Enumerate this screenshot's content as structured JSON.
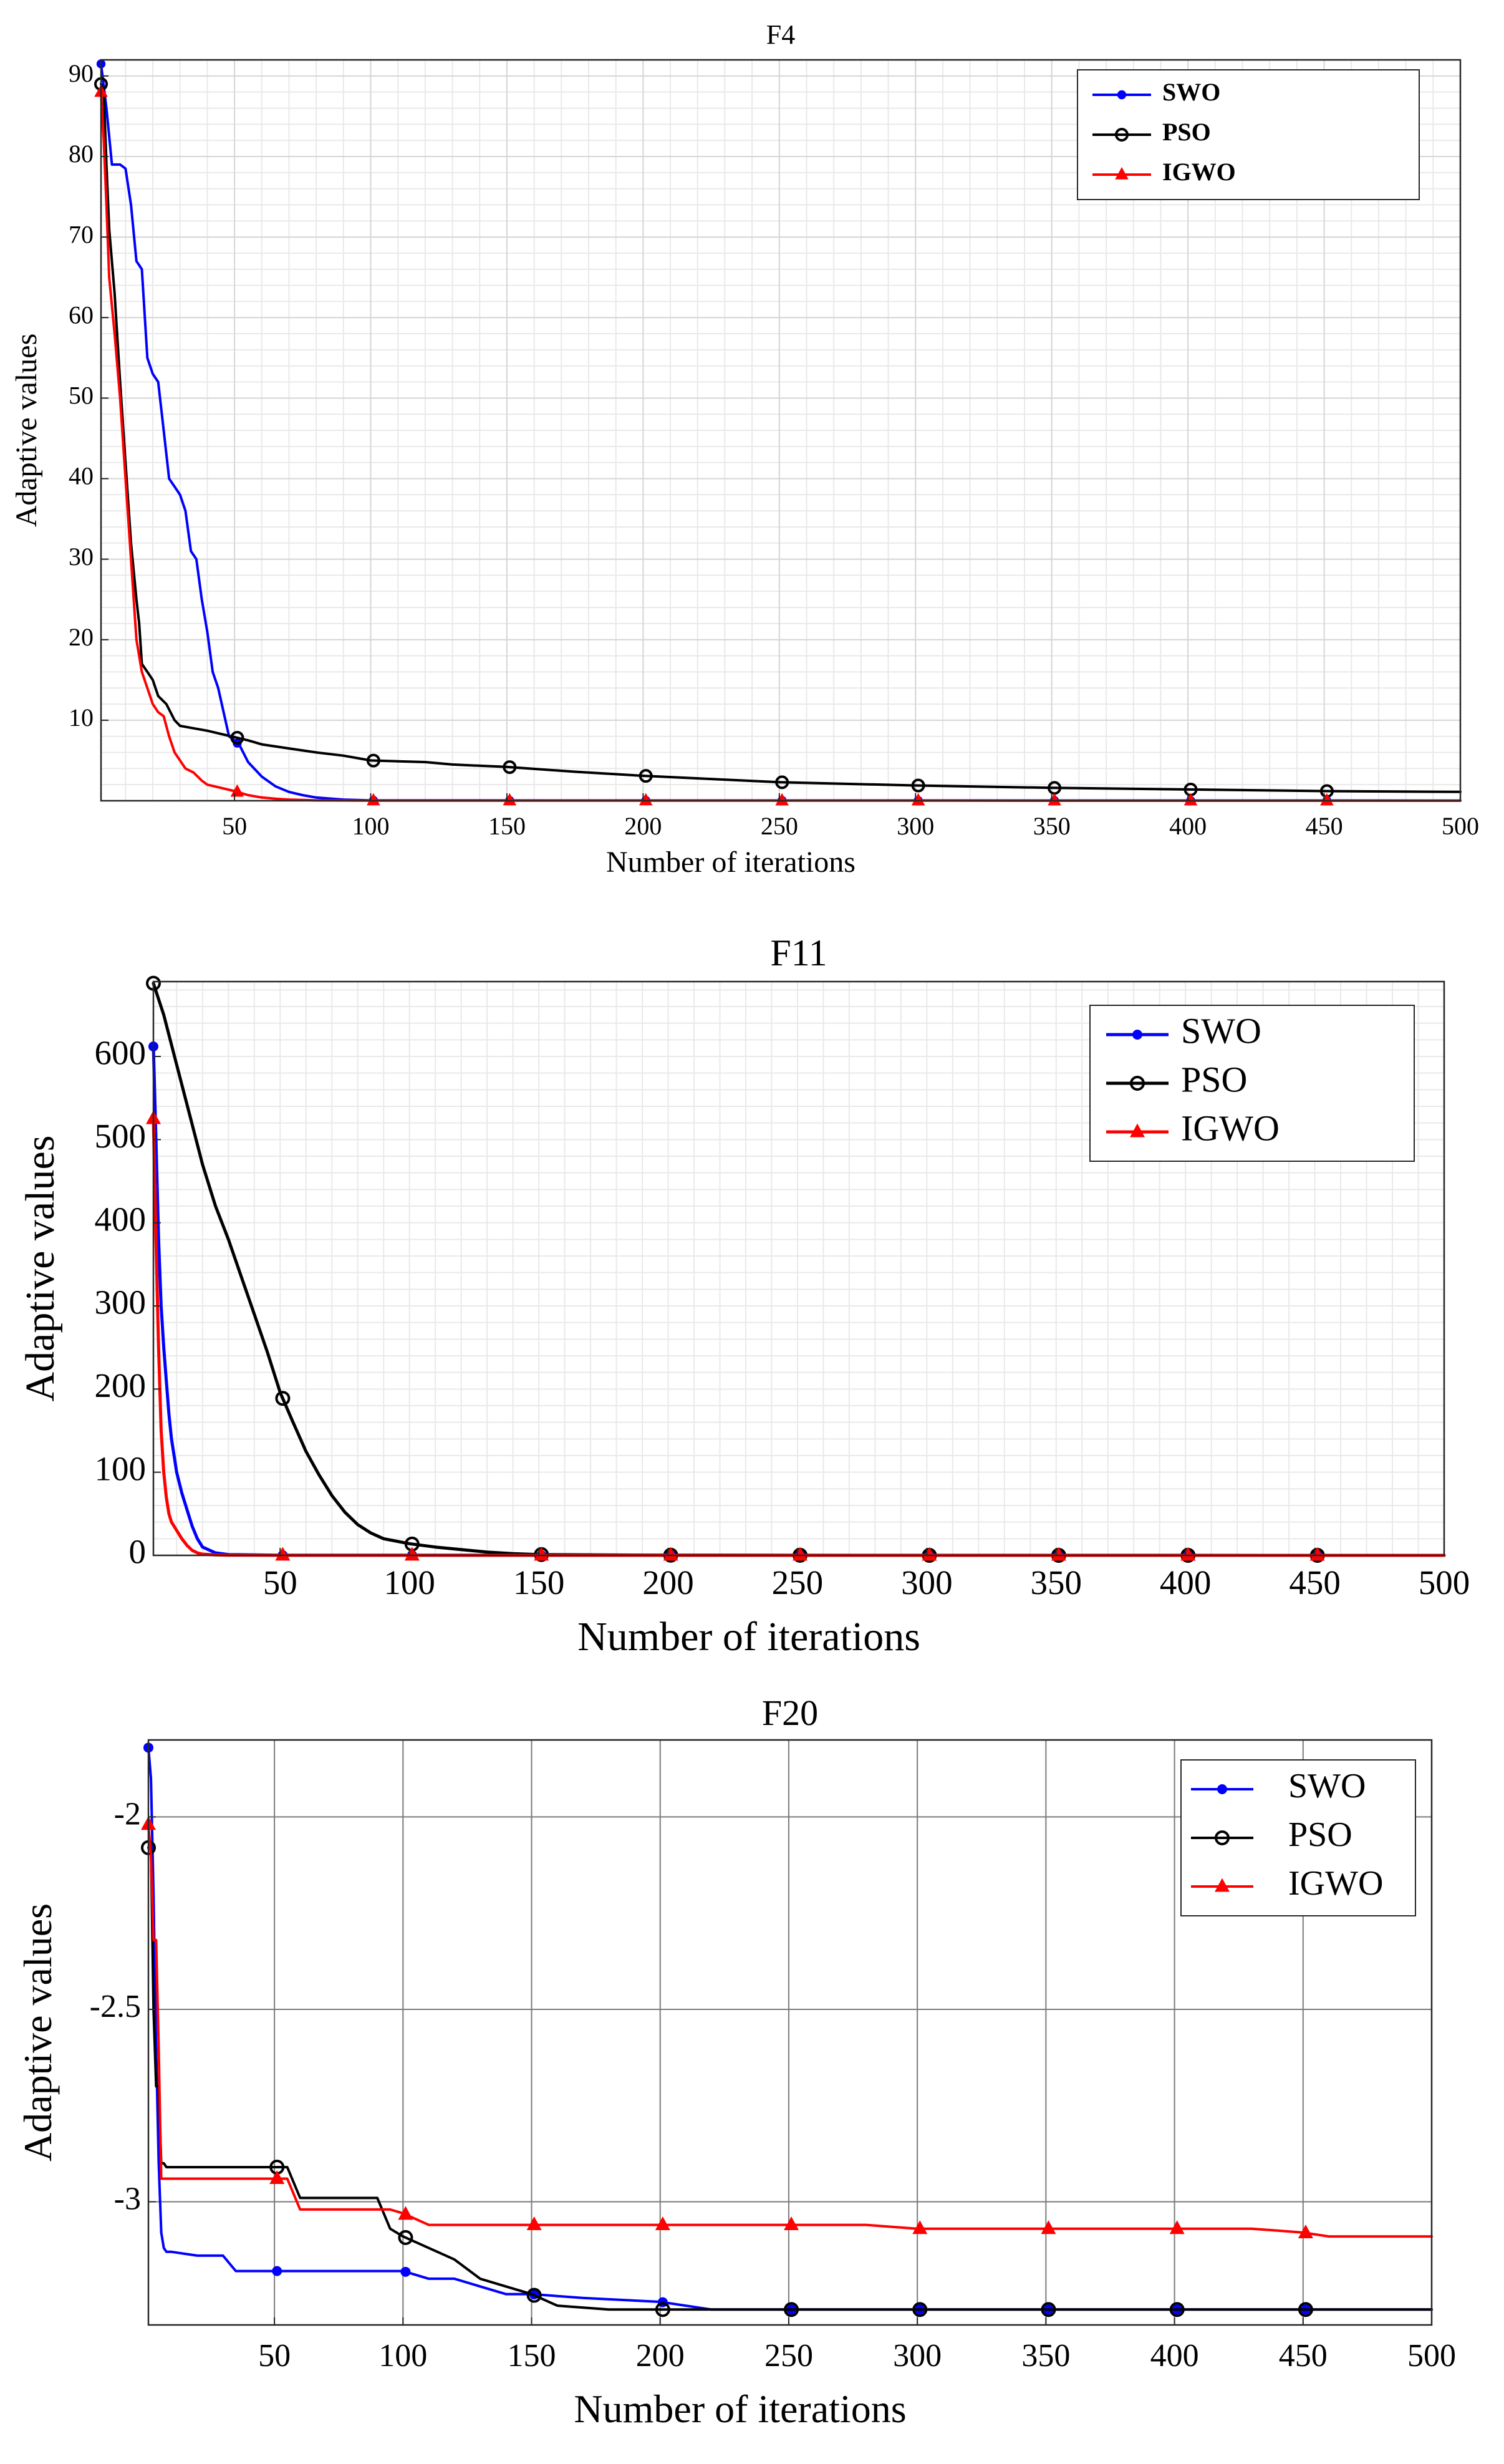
{
  "chart_data": [
    {
      "type": "line",
      "title": "F4",
      "xlabel": "Number of iterations",
      "ylabel": "Adaptive values",
      "xlim": [
        1,
        500
      ],
      "ylim": [
        0,
        92
      ],
      "xticks": [
        50,
        100,
        150,
        200,
        250,
        300,
        350,
        400,
        450,
        500
      ],
      "yticks": [
        10,
        20,
        30,
        40,
        50,
        60,
        70,
        80,
        90
      ],
      "grid": "major-minor",
      "legend_position": "top-right",
      "series": [
        {
          "name": "SWO",
          "color": "#0000ff",
          "marker": "dot",
          "x": [
            1,
            3,
            5,
            8,
            10,
            12,
            14,
            16,
            18,
            20,
            22,
            24,
            26,
            28,
            30,
            32,
            34,
            36,
            38,
            40,
            42,
            44,
            46,
            48,
            50,
            52,
            55,
            60,
            65,
            70,
            75,
            80,
            90,
            100,
            500
          ],
          "y": [
            91.5,
            86,
            79,
            79,
            78.5,
            74,
            67,
            66,
            55,
            53,
            52,
            46,
            40,
            39,
            38,
            36,
            31,
            30,
            25,
            21,
            16,
            14,
            11,
            8,
            7.5,
            6.8,
            4.8,
            3,
            1.8,
            1.1,
            0.7,
            0.4,
            0.15,
            0.05,
            0.02
          ]
        },
        {
          "name": "PSO",
          "color": "#000000",
          "marker": "circle",
          "x": [
            1,
            2,
            3,
            4,
            6,
            8,
            10,
            12,
            14,
            15,
            16,
            18,
            20,
            22,
            25,
            28,
            30,
            35,
            40,
            45,
            50,
            55,
            60,
            70,
            80,
            90,
            100,
            110,
            120,
            130,
            150,
            175,
            200,
            225,
            250,
            300,
            350,
            400,
            450,
            500
          ],
          "y": [
            89,
            88,
            79,
            71,
            63,
            52,
            42,
            32,
            25,
            22,
            17,
            16,
            15,
            13,
            12,
            10,
            9.3,
            9.0,
            8.7,
            8.3,
            7.9,
            7.5,
            7.0,
            6.5,
            6.0,
            5.6,
            5.0,
            4.9,
            4.8,
            4.5,
            4.2,
            3.6,
            3.1,
            2.7,
            2.3,
            1.9,
            1.6,
            1.4,
            1.2,
            1.1
          ]
        },
        {
          "name": "IGWO",
          "color": "#ff0000",
          "marker": "triangle",
          "x": [
            1,
            2,
            3,
            4,
            6,
            8,
            10,
            12,
            14,
            16,
            18,
            20,
            22,
            24,
            26,
            28,
            30,
            32,
            35,
            38,
            40,
            45,
            50,
            55,
            60,
            65,
            70,
            80,
            100,
            500
          ],
          "y": [
            88,
            82,
            74,
            65,
            58,
            50,
            40,
            30,
            20,
            16,
            14,
            12,
            11,
            10.5,
            8,
            6,
            5,
            4,
            3.5,
            2.5,
            2,
            1.6,
            1.2,
            0.7,
            0.4,
            0.25,
            0.15,
            0.05,
            0.02,
            0.01
          ]
        }
      ]
    },
    {
      "type": "line",
      "title": "F11",
      "xlabel": "Number of iterations",
      "ylabel": "Adaptive values",
      "xlim": [
        1,
        500
      ],
      "ylim": [
        0,
        690
      ],
      "xticks": [
        50,
        100,
        150,
        200,
        250,
        300,
        350,
        400,
        450,
        500
      ],
      "yticks": [
        0,
        100,
        200,
        300,
        400,
        500,
        600
      ],
      "grid": "minor",
      "legend_position": "top-right",
      "series": [
        {
          "name": "SWO",
          "color": "#0000ff",
          "marker": "dot",
          "x": [
            1,
            2,
            3,
            4,
            5,
            6,
            7,
            8,
            9,
            10,
            12,
            14,
            16,
            18,
            20,
            25,
            30,
            50,
            500
          ],
          "y": [
            612,
            500,
            380,
            300,
            250,
            210,
            170,
            140,
            120,
            100,
            75,
            55,
            35,
            20,
            10,
            3,
            1,
            0.2,
            0
          ]
        },
        {
          "name": "PSO",
          "color": "#000000",
          "marker": "circle",
          "x": [
            1,
            5,
            10,
            15,
            20,
            25,
            30,
            35,
            40,
            45,
            50,
            55,
            60,
            65,
            70,
            75,
            80,
            85,
            90,
            95,
            100,
            110,
            120,
            130,
            140,
            150,
            175,
            200,
            250,
            300,
            500
          ],
          "y": [
            688,
            650,
            590,
            530,
            470,
            420,
            380,
            335,
            290,
            245,
            196,
            160,
            125,
            97,
            72,
            52,
            37,
            27,
            20,
            17,
            14,
            10,
            7,
            4,
            2,
            1,
            0.5,
            0.2,
            0.1,
            0,
            0
          ]
        },
        {
          "name": "IGWO",
          "color": "#ff0000",
          "marker": "triangle",
          "x": [
            1,
            2,
            3,
            4,
            5,
            6,
            7,
            8,
            9,
            10,
            12,
            14,
            16,
            18,
            20,
            25,
            30,
            50,
            500
          ],
          "y": [
            525,
            380,
            250,
            150,
            100,
            70,
            50,
            40,
            35,
            30,
            20,
            12,
            6,
            3,
            1.5,
            0.5,
            0.2,
            0.1,
            0
          ]
        }
      ]
    },
    {
      "type": "line",
      "title": "F20",
      "xlabel": "Number of iterations",
      "ylabel": "Adaptive values",
      "xlim": [
        1,
        500
      ],
      "ylim": [
        -3.32,
        -1.8
      ],
      "xticks": [
        50,
        100,
        150,
        200,
        250,
        300,
        350,
        400,
        450,
        500
      ],
      "yticks": [
        -2,
        -2.5,
        -3
      ],
      "grid": "major",
      "legend_position": "top-right",
      "series": [
        {
          "name": "SWO",
          "color": "#0000ff",
          "marker": "dot",
          "x": [
            1,
            2,
            3,
            4,
            5,
            6,
            7,
            8,
            10,
            20,
            30,
            35,
            45,
            60,
            80,
            100,
            110,
            120,
            130,
            140,
            150,
            170,
            200,
            220,
            250,
            300,
            500
          ],
          "y": [
            -1.82,
            -1.9,
            -2.2,
            -2.6,
            -2.9,
            -3.08,
            -3.12,
            -3.13,
            -3.13,
            -3.14,
            -3.14,
            -3.18,
            -3.18,
            -3.18,
            -3.18,
            -3.18,
            -3.2,
            -3.2,
            -3.22,
            -3.24,
            -3.24,
            -3.25,
            -3.26,
            -3.28,
            -3.28,
            -3.28,
            -3.28
          ]
        },
        {
          "name": "PSO",
          "color": "#000000",
          "marker": "circle",
          "x": [
            1,
            2,
            3,
            4,
            5,
            6,
            7,
            8,
            20,
            30,
            40,
            50,
            55,
            60,
            70,
            80,
            90,
            95,
            100,
            110,
            120,
            130,
            140,
            150,
            160,
            180,
            200,
            250,
            300,
            500
          ],
          "y": [
            -2.08,
            -2.08,
            -2.5,
            -2.7,
            -2.7,
            -2.9,
            -2.9,
            -2.91,
            -2.91,
            -2.91,
            -2.91,
            -2.91,
            -2.91,
            -2.99,
            -2.99,
            -2.99,
            -2.99,
            -3.07,
            -3.09,
            -3.12,
            -3.15,
            -3.2,
            -3.22,
            -3.24,
            -3.27,
            -3.28,
            -3.28,
            -3.28,
            -3.28,
            -3.28
          ]
        },
        {
          "name": "IGWO",
          "color": "#ff0000",
          "marker": "triangle",
          "x": [
            1,
            2,
            3,
            4,
            5,
            6,
            7,
            20,
            40,
            50,
            55,
            60,
            80,
            95,
            100,
            110,
            150,
            200,
            250,
            280,
            300,
            350,
            400,
            430,
            450,
            460,
            500
          ],
          "y": [
            -2.02,
            -2.1,
            -2.32,
            -2.32,
            -2.6,
            -2.94,
            -2.94,
            -2.94,
            -2.94,
            -2.94,
            -2.94,
            -3.02,
            -3.02,
            -3.02,
            -3.03,
            -3.06,
            -3.06,
            -3.06,
            -3.06,
            -3.06,
            -3.07,
            -3.07,
            -3.07,
            -3.07,
            -3.08,
            -3.09,
            -3.09
          ]
        }
      ]
    }
  ]
}
